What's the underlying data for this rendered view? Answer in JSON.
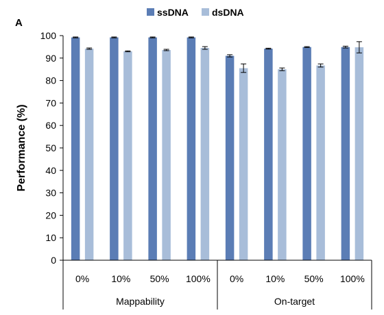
{
  "chart_data": {
    "type": "bar",
    "panel_label": "A",
    "ylabel": "Performance (%)",
    "xlabel": "",
    "ylim": [
      0,
      100
    ],
    "yticks": [
      "0",
      "10",
      "20",
      "30",
      "40",
      "50",
      "60",
      "70",
      "80",
      "90",
      "100"
    ],
    "groups": [
      {
        "label": "Mappability",
        "categories": [
          "0%",
          "10%",
          "50%",
          "100%"
        ]
      },
      {
        "label": "On-target",
        "categories": [
          "0%",
          "10%",
          "50%",
          "100%"
        ]
      }
    ],
    "categories": [
      "0%",
      "10%",
      "50%",
      "100%",
      "0%",
      "10%",
      "50%",
      "100%"
    ],
    "series": [
      {
        "name": "ssDNA",
        "color": "#5b7db5",
        "values": [
          99.2,
          99.2,
          99.2,
          99.2,
          91.0,
          94.2,
          94.9,
          94.9
        ],
        "errors": [
          0.2,
          0.2,
          0.2,
          0.2,
          0.5,
          0.2,
          0.2,
          0.4
        ]
      },
      {
        "name": "dsDNA",
        "color": "#a8bdd9",
        "values": [
          94.2,
          93.0,
          93.6,
          94.5,
          85.5,
          85.0,
          86.7,
          94.8
        ],
        "errors": [
          0.3,
          0.2,
          0.3,
          0.6,
          1.9,
          0.6,
          0.7,
          2.5
        ]
      }
    ],
    "legend_position": "top-center",
    "grid": false
  }
}
